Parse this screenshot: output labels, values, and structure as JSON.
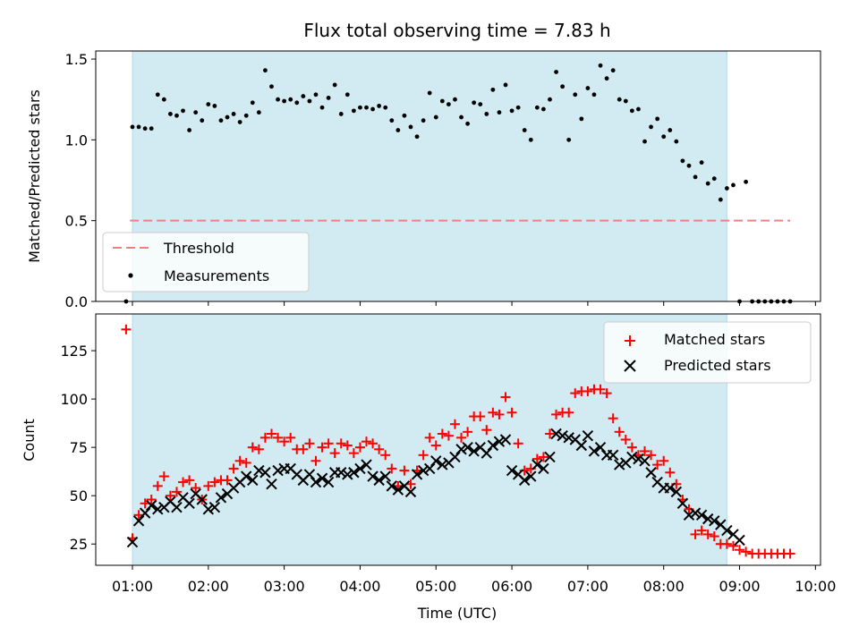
{
  "chart_data": [
    {
      "type": "scatter",
      "title": "Flux total observing time = 7.83 h",
      "xlabel": "",
      "ylabel": "Matched/Predicted stars",
      "xlim": [
        "00:31",
        "10:04"
      ],
      "ylim": [
        0,
        1.55
      ],
      "yticks": [
        "0.0",
        "0.5",
        "1.0",
        "1.5"
      ],
      "observing_window": {
        "start": "01:00",
        "end": "08:50"
      },
      "threshold": {
        "name": "Threshold",
        "value": 0.5,
        "x_start": "00:58",
        "x_end": "09:40",
        "color": "#f08080"
      },
      "legend": {
        "position": "lower-left"
      },
      "series": [
        {
          "name": "Measurements",
          "color": "#000000",
          "x": [
            "00:55",
            "01:00",
            "01:05",
            "01:10",
            "01:15",
            "01:20",
            "01:25",
            "01:30",
            "01:35",
            "01:40",
            "01:45",
            "01:50",
            "01:55",
            "02:00",
            "02:05",
            "02:10",
            "02:15",
            "02:20",
            "02:25",
            "02:30",
            "02:35",
            "02:40",
            "02:45",
            "02:50",
            "02:55",
            "03:00",
            "03:05",
            "03:10",
            "03:15",
            "03:20",
            "03:25",
            "03:30",
            "03:35",
            "03:40",
            "03:45",
            "03:50",
            "03:55",
            "04:00",
            "04:05",
            "04:10",
            "04:15",
            "04:20",
            "04:25",
            "04:30",
            "04:35",
            "04:40",
            "04:45",
            "04:50",
            "04:55",
            "05:00",
            "05:05",
            "05:10",
            "05:15",
            "05:20",
            "05:25",
            "05:30",
            "05:35",
            "05:40",
            "05:45",
            "05:50",
            "05:55",
            "06:00",
            "06:05",
            "06:10",
            "06:15",
            "06:20",
            "06:25",
            "06:30",
            "06:35",
            "06:40",
            "06:45",
            "06:50",
            "06:55",
            "07:00",
            "07:05",
            "07:10",
            "07:15",
            "07:20",
            "07:25",
            "07:30",
            "07:35",
            "07:40",
            "07:45",
            "07:50",
            "07:55",
            "08:00",
            "08:05",
            "08:10",
            "08:15",
            "08:20",
            "08:25",
            "08:30",
            "08:35",
            "08:40",
            "08:45",
            "08:50",
            "08:55",
            "09:00",
            "09:05",
            "09:10",
            "09:15",
            "09:20",
            "09:25",
            "09:30",
            "09:35",
            "09:40"
          ],
          "y": [
            0.0,
            1.08,
            1.08,
            1.07,
            1.07,
            1.28,
            1.25,
            1.16,
            1.15,
            1.18,
            1.06,
            1.17,
            1.12,
            1.22,
            1.21,
            1.12,
            1.14,
            1.16,
            1.11,
            1.15,
            1.23,
            1.17,
            1.43,
            1.33,
            1.25,
            1.24,
            1.25,
            1.23,
            1.27,
            1.24,
            1.28,
            1.2,
            1.26,
            1.34,
            1.16,
            1.28,
            1.18,
            1.2,
            1.2,
            1.19,
            1.21,
            1.2,
            1.12,
            1.06,
            1.15,
            1.08,
            1.02,
            1.12,
            1.29,
            1.14,
            1.24,
            1.22,
            1.25,
            1.14,
            1.1,
            1.23,
            1.22,
            1.16,
            1.31,
            1.17,
            1.34,
            1.18,
            1.2,
            1.06,
            1.0,
            1.2,
            1.19,
            1.25,
            1.42,
            1.33,
            1.0,
            1.28,
            1.13,
            1.32,
            1.28,
            1.46,
            1.38,
            1.43,
            1.25,
            1.24,
            1.18,
            1.19,
            0.99,
            1.08,
            1.13,
            1.02,
            1.06,
            0.99,
            0.87,
            0.84,
            0.77,
            0.86,
            0.73,
            0.76,
            0.63,
            0.7,
            0.72,
            0.0,
            0.74,
            0.0,
            0.0,
            0.0,
            0.0,
            0.0,
            0.0,
            0.0
          ]
        }
      ]
    },
    {
      "type": "scatter",
      "title": "",
      "xlabel": "Time (UTC)",
      "ylabel": "Count",
      "xlim": [
        "00:31",
        "10:04"
      ],
      "ylim": [
        14,
        144
      ],
      "yticks": [
        "25",
        "50",
        "75",
        "100",
        "125"
      ],
      "xticks": [
        "01:00",
        "02:00",
        "03:00",
        "04:00",
        "05:00",
        "06:00",
        "07:00",
        "08:00",
        "09:00",
        "10:00"
      ],
      "observing_window": {
        "start": "01:00",
        "end": "08:50"
      },
      "legend": {
        "position": "upper-right"
      },
      "series": [
        {
          "name": "Matched stars",
          "color": "#ff0000",
          "marker": "plus",
          "x": [
            "00:55",
            "01:00",
            "01:05",
            "01:10",
            "01:15",
            "01:20",
            "01:25",
            "01:30",
            "01:35",
            "01:40",
            "01:45",
            "01:50",
            "01:55",
            "02:00",
            "02:05",
            "02:10",
            "02:15",
            "02:20",
            "02:25",
            "02:30",
            "02:35",
            "02:40",
            "02:45",
            "02:50",
            "02:55",
            "03:00",
            "03:05",
            "03:10",
            "03:15",
            "03:20",
            "03:25",
            "03:30",
            "03:35",
            "03:40",
            "03:45",
            "03:50",
            "03:55",
            "04:00",
            "04:05",
            "04:10",
            "04:15",
            "04:20",
            "04:25",
            "04:30",
            "04:35",
            "04:40",
            "04:45",
            "04:50",
            "04:55",
            "05:00",
            "05:05",
            "05:10",
            "05:15",
            "05:20",
            "05:25",
            "05:30",
            "05:35",
            "05:40",
            "05:45",
            "05:50",
            "05:55",
            "06:00",
            "06:05",
            "06:10",
            "06:15",
            "06:20",
            "06:25",
            "06:30",
            "06:35",
            "06:40",
            "06:45",
            "06:50",
            "06:55",
            "07:00",
            "07:05",
            "07:10",
            "07:15",
            "07:20",
            "07:25",
            "07:30",
            "07:35",
            "07:40",
            "07:45",
            "07:50",
            "07:55",
            "08:00",
            "08:05",
            "08:10",
            "08:15",
            "08:20",
            "08:25",
            "08:30",
            "08:35",
            "08:40",
            "08:45",
            "08:50",
            "08:55",
            "09:00",
            "09:05",
            "09:10",
            "09:15",
            "09:20",
            "09:25",
            "09:30",
            "09:35",
            "09:40"
          ],
          "y": [
            136,
            28,
            40,
            46,
            48,
            55,
            60,
            50,
            52,
            57,
            58,
            54,
            48,
            55,
            57,
            58,
            58,
            64,
            68,
            67,
            75,
            74,
            80,
            82,
            80,
            78,
            80,
            74,
            74,
            77,
            68,
            75,
            77,
            72,
            77,
            76,
            72,
            75,
            78,
            77,
            74,
            71,
            64,
            55,
            63,
            56,
            63,
            71,
            80,
            76,
            82,
            81,
            87,
            80,
            83,
            91,
            91,
            84,
            93,
            92,
            101,
            93,
            77,
            63,
            64,
            69,
            70,
            82,
            92,
            93,
            93,
            103,
            104,
            104,
            105,
            105,
            103,
            90,
            83,
            79,
            75,
            71,
            73,
            71,
            66,
            68,
            62,
            56,
            48,
            43,
            30,
            32,
            30,
            29,
            25,
            25,
            24,
            22,
            21,
            20,
            20,
            20,
            20,
            20,
            20,
            20
          ]
        },
        {
          "name": "Predicted stars",
          "color": "#000000",
          "marker": "x",
          "x": [
            "01:00",
            "01:05",
            "01:10",
            "01:15",
            "01:20",
            "01:25",
            "01:30",
            "01:35",
            "01:40",
            "01:45",
            "01:50",
            "01:55",
            "02:00",
            "02:05",
            "02:10",
            "02:15",
            "02:20",
            "02:25",
            "02:30",
            "02:35",
            "02:40",
            "02:45",
            "02:50",
            "02:55",
            "03:00",
            "03:05",
            "03:10",
            "03:15",
            "03:20",
            "03:25",
            "03:30",
            "03:35",
            "03:40",
            "03:45",
            "03:50",
            "03:55",
            "04:00",
            "04:05",
            "04:10",
            "04:15",
            "04:20",
            "04:25",
            "04:30",
            "04:35",
            "04:40",
            "04:45",
            "04:50",
            "04:55",
            "05:00",
            "05:05",
            "05:10",
            "05:15",
            "05:20",
            "05:25",
            "05:30",
            "05:35",
            "05:40",
            "05:45",
            "05:50",
            "05:55",
            "06:00",
            "06:05",
            "06:10",
            "06:15",
            "06:20",
            "06:25",
            "06:30",
            "06:35",
            "06:40",
            "06:45",
            "06:50",
            "06:55",
            "07:00",
            "07:05",
            "07:10",
            "07:15",
            "07:20",
            "07:25",
            "07:30",
            "07:35",
            "07:40",
            "07:45",
            "07:50",
            "07:55",
            "08:00",
            "08:05",
            "08:10",
            "08:15",
            "08:20",
            "08:25",
            "08:30",
            "08:35",
            "08:40",
            "08:45",
            "08:50",
            "08:55",
            "09:00"
          ],
          "y": [
            26,
            37,
            41,
            45,
            43,
            44,
            47,
            44,
            49,
            46,
            51,
            48,
            43,
            44,
            49,
            51,
            54,
            57,
            60,
            58,
            63,
            62,
            56,
            63,
            64,
            64,
            61,
            58,
            61,
            57,
            59,
            57,
            62,
            62,
            61,
            62,
            64,
            66,
            60,
            58,
            60,
            55,
            53,
            55,
            52,
            61,
            63,
            64,
            68,
            66,
            67,
            70,
            74,
            75,
            73,
            75,
            72,
            76,
            78,
            79,
            63,
            61,
            58,
            60,
            66,
            64,
            70,
            82,
            81,
            80,
            79,
            76,
            81,
            73,
            75,
            71,
            71,
            66,
            67,
            70,
            69,
            68,
            62,
            57,
            54,
            54,
            52,
            46,
            40,
            41,
            40,
            38,
            37,
            35,
            32,
            30,
            27
          ]
        }
      ]
    }
  ]
}
